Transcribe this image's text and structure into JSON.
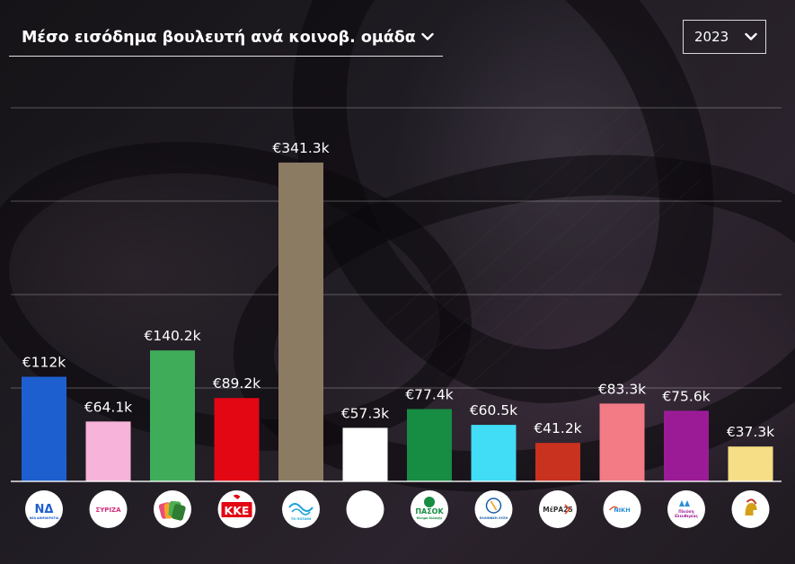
{
  "header": {
    "title": "Μέσο εισόδημα βουλευτή ανά κοινοβ. ομάδα",
    "year": "2023"
  },
  "chart_data": {
    "type": "bar",
    "title": "Μέσο εισόδημα βουλευτή ανά κοινοβ. ομάδα",
    "xlabel": "",
    "ylabel": "",
    "ylim": [
      0,
      400
    ],
    "grid": true,
    "categories": [
      "ΝΔ",
      "ΣΥΡΙΖΑ",
      "Νέα Αριστερά",
      "ΚΚΕ",
      "Το Ποτάμι",
      "",
      "ΠΑΣΟΚ",
      "Ελληνική Λύση",
      "ΜέΡΑ25",
      "ΝΙΚΗ",
      "Πλεύση Ελευθερίας",
      "Σπαρτιάτες"
    ],
    "values": [
      112,
      64.1,
      140.2,
      89.2,
      341.3,
      57.3,
      77.4,
      60.5,
      41.2,
      83.3,
      75.6,
      37.3
    ],
    "labels": [
      "€112k",
      "€64.1k",
      "€140.2k",
      "€89.2k",
      "€341.3k",
      "€57.3k",
      "€77.4k",
      "€60.5k",
      "€41.2k",
      "€83.3k",
      "€75.6k",
      "€37.3k"
    ],
    "colors": [
      "#1e5fd0",
      "#f7b3d9",
      "#3fac5a",
      "#e30613",
      "#8b7b63",
      "#ffffff",
      "#178c43",
      "#41dcf5",
      "#c8321e",
      "#f27b86",
      "#9b1b96",
      "#f6de86"
    ]
  },
  "logos": [
    {
      "icon": "nd-logo-icon",
      "text": "ΝΔ",
      "sub": "ΝΕΑ ΔΗΜΟΚΡΑΤΙΑ",
      "color": "#1e5fd0"
    },
    {
      "icon": "syriza-logo-icon",
      "text": "ΣΥΡΙΖΑ",
      "color": "#d62e7a"
    },
    {
      "icon": "nea-aristera-logo-icon",
      "text": "",
      "color": "#4caf50"
    },
    {
      "icon": "kke-logo-icon",
      "text": "ΚΚΕ",
      "color": "#e30613"
    },
    {
      "icon": "potami-logo-icon",
      "text": "ΤΟ ΠΟΤΑΜΙ",
      "color": "#1aa3d8"
    },
    {
      "icon": "blank-logo-icon",
      "text": "",
      "color": "#ffffff"
    },
    {
      "icon": "pasok-logo-icon",
      "text": "ΠΑΣΟΚ",
      "sub": "Κίνημα Αλλαγής",
      "color": "#178c43"
    },
    {
      "icon": "elliniki-lysi-logo-icon",
      "text": "ΕΛΛΗΝΙΚΗ ΛΥΣΗ",
      "color": "#1a5ea8"
    },
    {
      "icon": "mera25-logo-icon",
      "text": "ΜέΡΑ25",
      "color": "#e2401c"
    },
    {
      "icon": "niki-logo-icon",
      "text": "ΝΙΚΗ",
      "color": "#2a8fd6"
    },
    {
      "icon": "plefsi-logo-icon",
      "text": "Πλεύση Ελευθερίας",
      "color": "#9b1b96"
    },
    {
      "icon": "spartiates-logo-icon",
      "text": "",
      "color": "#d4a017"
    }
  ]
}
